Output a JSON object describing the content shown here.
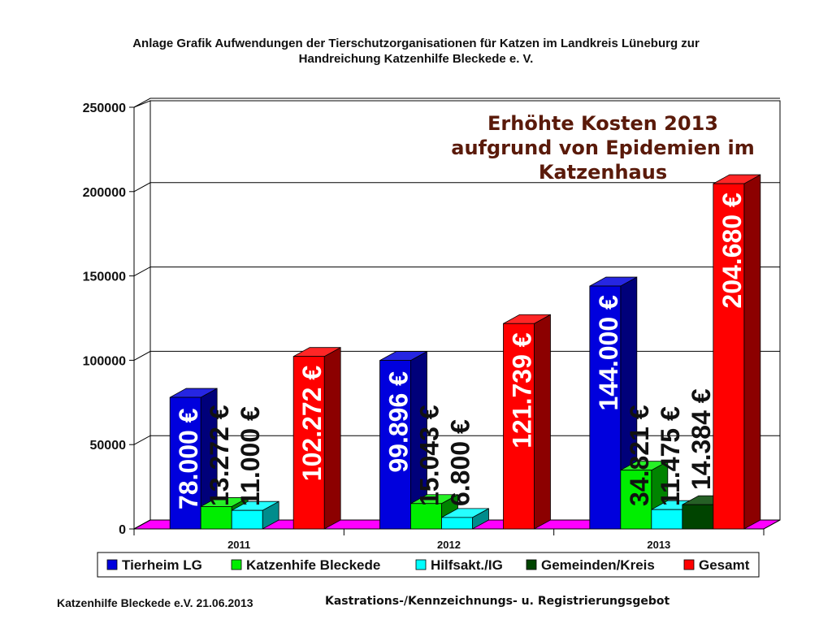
{
  "header": {
    "title_line1": "Anlage Grafik Aufwendungen der Tierschutzorganisationen für Katzen im Landkreis Lüneburg zur",
    "title_line2": "Handreichung Katzenhilfe Bleckede e. V."
  },
  "footer": {
    "left": "Katzenhilfe Bleckede e.V.   21.06.2013",
    "right": "Kastrations-/Kennzeichnungs- u. Registrierungsgebot"
  },
  "chart_data": {
    "type": "bar",
    "style": "3d-clustered",
    "categories": [
      "2011",
      "2012",
      "2013"
    ],
    "series": [
      {
        "name": "Tierheim LG",
        "color": "#0000dd",
        "values": [
          78000,
          99896,
          144000
        ],
        "labels": [
          "78.000 €",
          "99.896 €",
          "144.000 €"
        ]
      },
      {
        "name": "Katzenhife Bleckede",
        "color": "#00ee00",
        "values": [
          13272,
          15043,
          34821
        ],
        "labels": [
          "13.272 €",
          "15.043 €",
          "34.821 €"
        ]
      },
      {
        "name": "Hilfsakt./IG",
        "color": "#00ffff",
        "values": [
          11000,
          6800,
          11475
        ],
        "labels": [
          "11.000 €",
          "6.800 €",
          "11.475 €"
        ]
      },
      {
        "name": "Gemeinden/Kreis",
        "color": "#004400",
        "values": [
          null,
          null,
          14384
        ],
        "labels": [
          null,
          null,
          "14.384 €"
        ]
      },
      {
        "name": "Gesamt",
        "color": "#ff0000",
        "values": [
          102272,
          121739,
          204680
        ],
        "labels": [
          "102.272 €",
          "121.739 €",
          "204.680 €"
        ]
      }
    ],
    "ylim": [
      0,
      250000
    ],
    "yticks": [
      0,
      50000,
      100000,
      150000,
      200000,
      250000
    ],
    "grid": true,
    "legend_position": "bottom",
    "floor_color": "#ff00ff",
    "annotation": {
      "line1": "Erhöhte Kosten 2013",
      "line2": "aufgrund von Epidemien im",
      "line3": "Katzenhaus",
      "color": "#5a1a0a"
    }
  }
}
